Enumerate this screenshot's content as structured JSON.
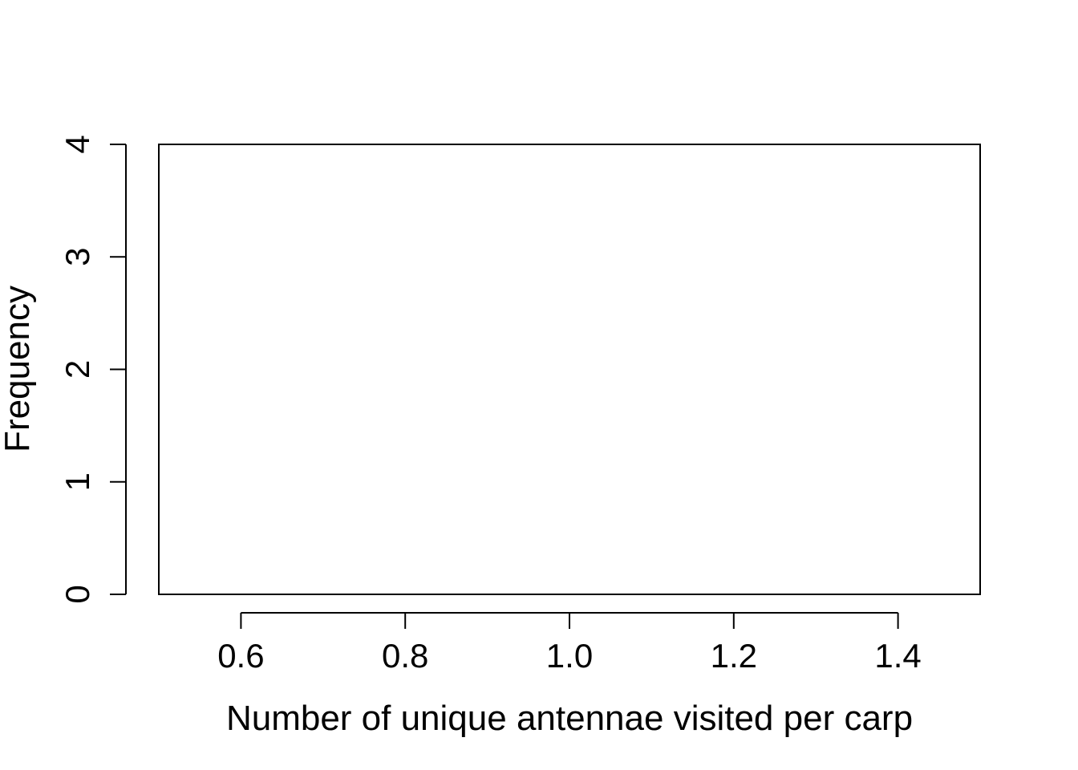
{
  "chart_data": {
    "type": "bar",
    "title": "",
    "xlabel": "Number of unique antennae visited per carp",
    "ylabel": "Frequency",
    "x_ticks": [
      "0.6",
      "0.8",
      "1.0",
      "1.2",
      "1.4"
    ],
    "x_tick_values": [
      0.6,
      0.8,
      1.0,
      1.2,
      1.4
    ],
    "y_ticks": [
      "0",
      "1",
      "2",
      "3",
      "4"
    ],
    "y_tick_values": [
      0,
      1,
      2,
      3,
      4
    ],
    "xlim": [
      0.5,
      1.5
    ],
    "ylim": [
      0,
      4
    ],
    "grid": false,
    "legend": "none",
    "bins": [],
    "colors": {
      "axis": "#000000",
      "background": "#ffffff"
    }
  }
}
